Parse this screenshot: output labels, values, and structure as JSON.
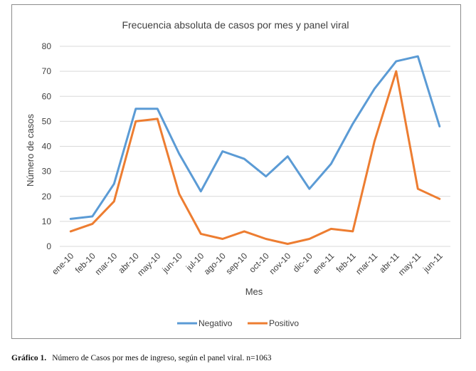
{
  "chart_data": {
    "type": "line",
    "title": "Frecuencia absoluta de casos por mes y panel viral",
    "xlabel": "Mes",
    "ylabel": "Número de casos",
    "ylim": [
      0,
      80
    ],
    "yticks": [
      0,
      10,
      20,
      30,
      40,
      50,
      60,
      70,
      80
    ],
    "grid": true,
    "legend_position": "bottom",
    "categories": [
      "ene-10",
      "feb-10",
      "mar-10",
      "abr-10",
      "may-10",
      "jun-10",
      "jul-10",
      "ago-10",
      "sep-10",
      "oct-10",
      "nov-10",
      "dic-10",
      "ene-11",
      "feb-11",
      "mar-11",
      "abr-11",
      "may-11",
      "jun-11"
    ],
    "series": [
      {
        "name": "Negativo",
        "color": "#5b9bd5",
        "values": [
          11,
          12,
          25,
          55,
          55,
          37,
          22,
          38,
          35,
          28,
          36,
          23,
          33,
          49,
          63,
          74,
          76,
          48
        ]
      },
      {
        "name": "Positivo",
        "color": "#ed7d31",
        "values": [
          6,
          9,
          18,
          50,
          51,
          21,
          5,
          3,
          6,
          3,
          1,
          3,
          7,
          6,
          42,
          70,
          23,
          19
        ]
      }
    ]
  },
  "caption": {
    "label": "Gráfico 1.",
    "text": "Número de Casos por mes de ingreso, según el panel viral. n=1063"
  }
}
